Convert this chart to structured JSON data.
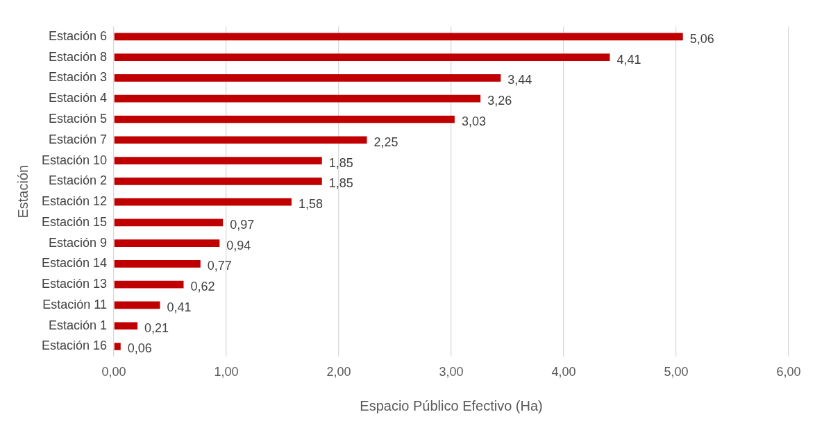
{
  "chart_data": {
    "type": "bar",
    "orientation": "horizontal",
    "xlabel": "Espacio Público Efectivo (Ha)",
    "ylabel": "Estación",
    "categories": [
      "Estación 6",
      "Estación 8",
      "Estación 3",
      "Estación 4",
      "Estación 5",
      "Estación 7",
      "Estación 10",
      "Estación 2",
      "Estación 12",
      "Estación 15",
      "Estación 9",
      "Estación 14",
      "Estación 13",
      "Estación 11",
      "Estación 1",
      "Estación 16"
    ],
    "values": [
      5.06,
      4.41,
      3.44,
      3.26,
      3.03,
      2.25,
      1.85,
      1.85,
      1.58,
      0.97,
      0.94,
      0.77,
      0.62,
      0.41,
      0.21,
      0.06
    ],
    "value_labels": [
      "5,06",
      "4,41",
      "3,44",
      "3,26",
      "3,03",
      "2,25",
      "1,85",
      "1,85",
      "1,58",
      "0,97",
      "0,94",
      "0,77",
      "0,62",
      "0,41",
      "0,21",
      "0,06"
    ],
    "color": "#c00000",
    "xlim": [
      0,
      6
    ],
    "xticks": [
      {
        "value": 0,
        "label": "0,00"
      },
      {
        "value": 1,
        "label": "1,00"
      },
      {
        "value": 2,
        "label": "2,00"
      },
      {
        "value": 3,
        "label": "3,00"
      },
      {
        "value": 4,
        "label": "4,00"
      },
      {
        "value": 5,
        "label": "5,00"
      },
      {
        "value": 6,
        "label": "6,00"
      }
    ],
    "grid": "x",
    "legend": false
  }
}
